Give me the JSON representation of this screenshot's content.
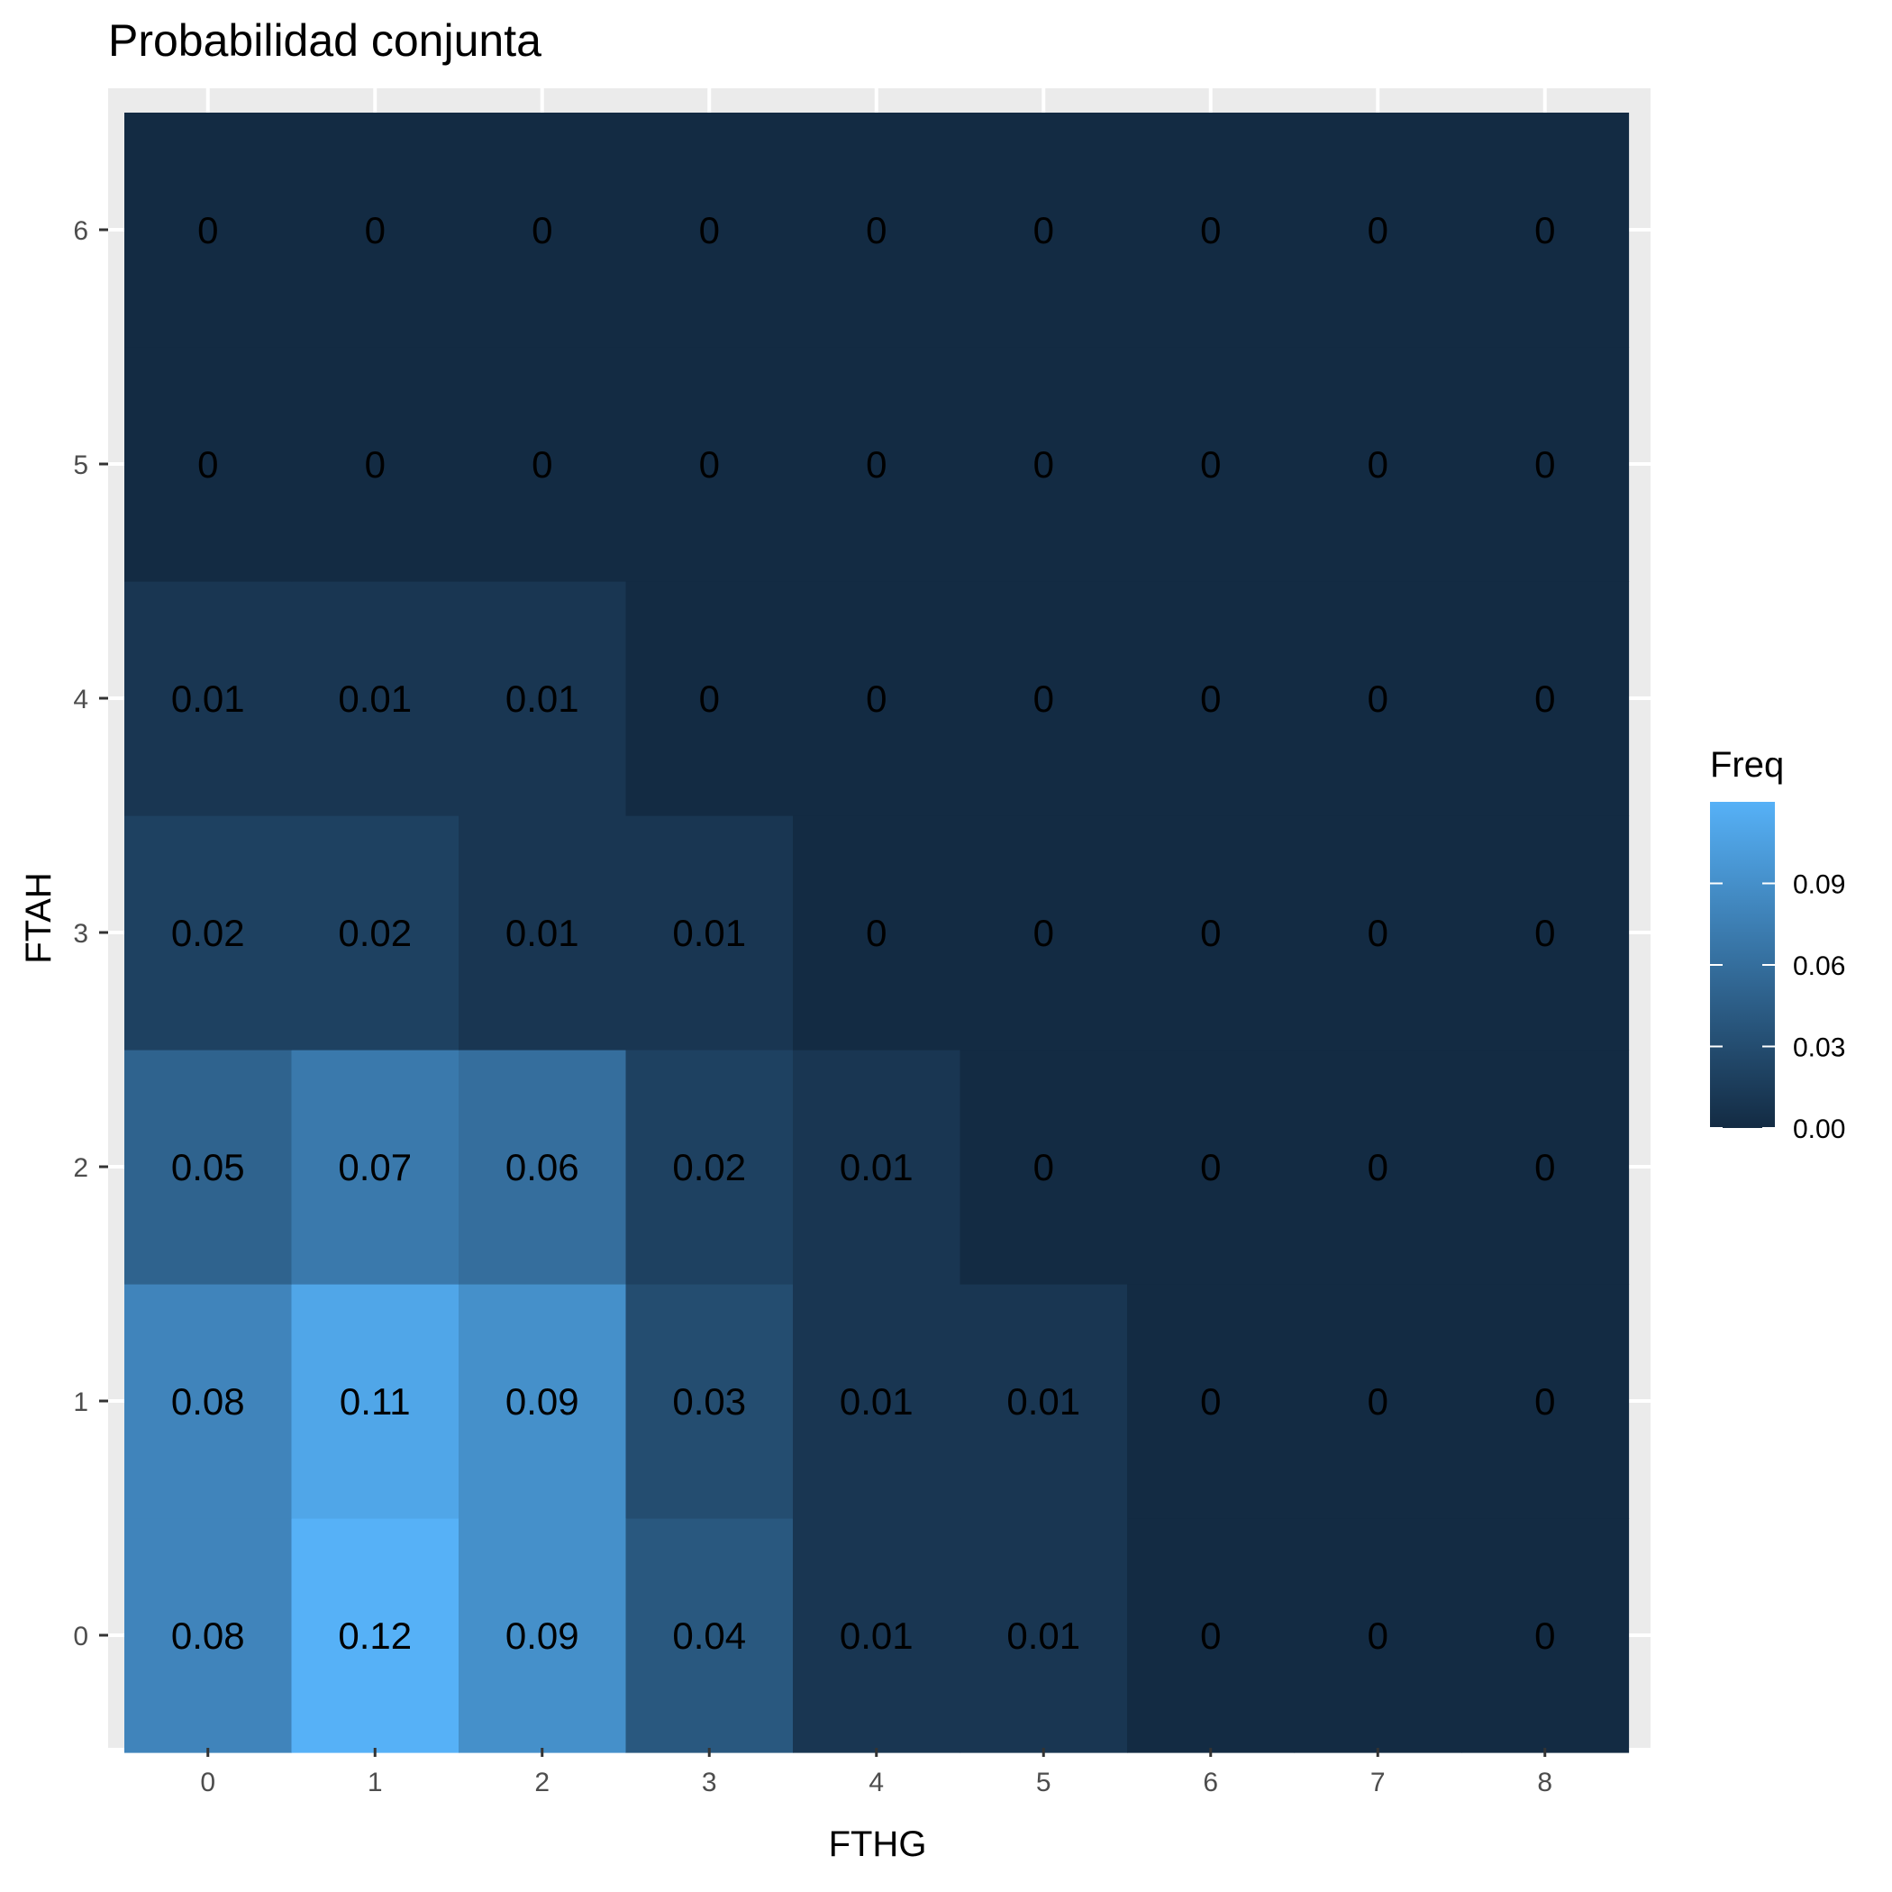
{
  "chart_data": {
    "type": "heatmap",
    "title": "Probabilidad conjunta",
    "xlabel": "FTHG",
    "ylabel": "FTAH",
    "x_categories": [
      "0",
      "1",
      "2",
      "3",
      "4",
      "5",
      "6",
      "7",
      "8"
    ],
    "y_categories": [
      "0",
      "1",
      "2",
      "3",
      "4",
      "5",
      "6"
    ],
    "values": [
      [
        0.08,
        0.12,
        0.09,
        0.04,
        0.01,
        0.01,
        0,
        0,
        0
      ],
      [
        0.08,
        0.11,
        0.09,
        0.03,
        0.01,
        0.01,
        0,
        0,
        0
      ],
      [
        0.05,
        0.07,
        0.06,
        0.02,
        0.01,
        0,
        0,
        0,
        0
      ],
      [
        0.02,
        0.02,
        0.01,
        0.01,
        0,
        0,
        0,
        0,
        0
      ],
      [
        0.01,
        0.01,
        0.01,
        0,
        0,
        0,
        0,
        0,
        0
      ],
      [
        0,
        0,
        0,
        0,
        0,
        0,
        0,
        0,
        0
      ],
      [
        0,
        0,
        0,
        0,
        0,
        0,
        0,
        0,
        0
      ]
    ],
    "legend": {
      "title": "Freq",
      "position": "right",
      "ticks": [
        0.0,
        0.03,
        0.06,
        0.09
      ],
      "tick_labels": [
        "0.00",
        "0.03",
        "0.06",
        "0.09"
      ],
      "range": [
        0,
        0.12
      ]
    },
    "colors": {
      "low": "#132B43",
      "high": "#56B1F7",
      "panel_background": "#EBEBEB",
      "grid": "#FFFFFF"
    },
    "grid": true
  }
}
